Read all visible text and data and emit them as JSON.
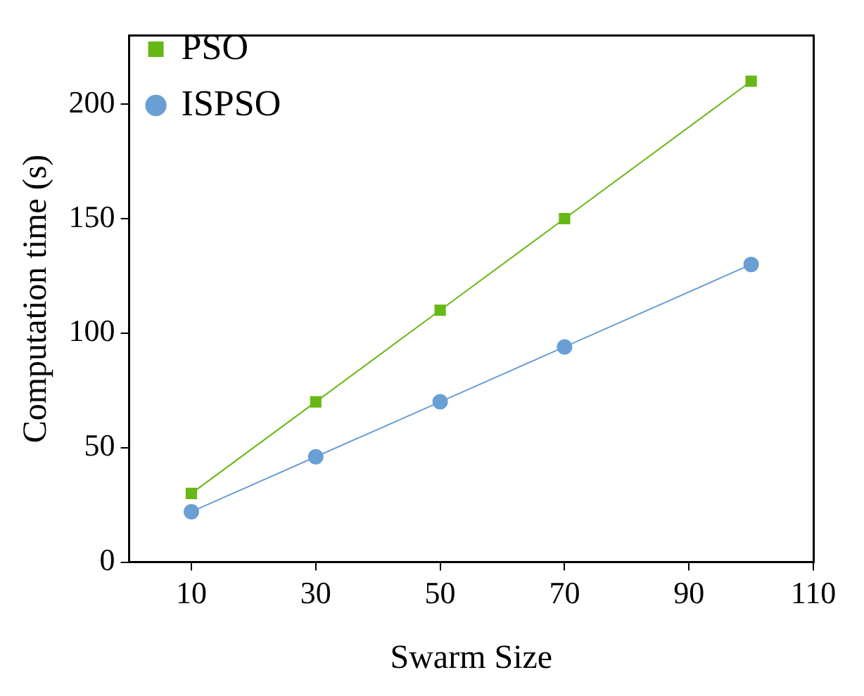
{
  "chart_data": {
    "type": "line",
    "xlabel": "Swarm Size",
    "ylabel": "Computation time (s)",
    "x": [
      10,
      30,
      50,
      70,
      100
    ],
    "series": [
      {
        "name": "PSO",
        "color": "#66b814",
        "values": [
          30,
          70,
          110,
          150,
          210
        ],
        "marker": "square"
      },
      {
        "name": "ISPSO",
        "color": "#6a9fd4",
        "values": [
          22,
          46,
          70,
          94,
          130
        ],
        "marker": "circle"
      }
    ],
    "xlim": [
      0,
      110
    ],
    "xticks": [
      10,
      30,
      50,
      70,
      90,
      110
    ],
    "ylim": [
      0,
      230
    ],
    "yticks": [
      0,
      50,
      100,
      150,
      200
    ],
    "grid": false,
    "legend": "top left",
    "line_style": "solid"
  }
}
